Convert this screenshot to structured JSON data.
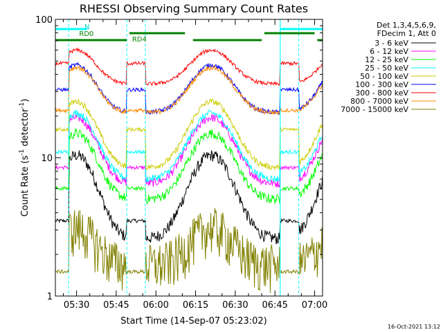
{
  "chart_data": {
    "type": "line",
    "title": "RHESSI Observing Summary Count Rates",
    "xlabel": "Start Time (14-Sep-07 05:23:02)",
    "ylabel_main": "Count Rate (s",
    "ylabel_sup1": "-1",
    "ylabel_mid": " detector",
    "ylabel_sup2": "-1",
    "ylabel_end": ")",
    "yscale": "log",
    "ylim": [
      1,
      100
    ],
    "xlim_minutes": [
      -8,
      93
    ],
    "x_ticks": [
      {
        "label": "05:30",
        "min": 0
      },
      {
        "label": "05:45",
        "min": 15
      },
      {
        "label": "06:00",
        "min": 30
      },
      {
        "label": "06:15",
        "min": 45
      },
      {
        "label": "06:30",
        "min": 60
      },
      {
        "label": "06:45",
        "min": 75
      },
      {
        "label": "07:00",
        "min": 90
      }
    ],
    "y_ticks": [
      {
        "label": "1",
        "value": 1
      },
      {
        "label": "10",
        "value": 10
      },
      {
        "label": "100",
        "value": 100
      }
    ],
    "legend_header": [
      "Det 1,3,4,5,6,9,",
      "FDecim 1, Att 0"
    ],
    "legend_position": "right",
    "series": [
      {
        "name": "3 - 6 keV",
        "color": "#000000",
        "base": 6.5,
        "amp": 1.2,
        "noise": 0.1,
        "night": 3.5
      },
      {
        "name": "6 - 12 keV",
        "color": "#ff00ff",
        "base": 13.0,
        "amp": 1.0,
        "noise": 0.07,
        "night": 8.5
      },
      {
        "name": "12 - 25 keV",
        "color": "#00ff00",
        "base": 10.0,
        "amp": 1.0,
        "noise": 0.08,
        "night": 6.0
      },
      {
        "name": "25 - 50 keV",
        "color": "#00ffff",
        "base": 14.0,
        "amp": 1.0,
        "noise": 0.06,
        "night": 11.0
      },
      {
        "name": "50 - 100 keV",
        "color": "#cccc00",
        "base": 17.0,
        "amp": 1.0,
        "noise": 0.05,
        "night": 16.0
      },
      {
        "name": "100 - 300 keV",
        "color": "#0000ff",
        "base": 34.0,
        "amp": 0.75,
        "noise": 0.04,
        "night": 31.0
      },
      {
        "name": "300 - 800 keV",
        "color": "#ff0000",
        "base": 47.0,
        "amp": 0.55,
        "noise": 0.03,
        "night": 48.0
      },
      {
        "name": "800 - 7000 keV",
        "color": "#ff8800",
        "base": 33.0,
        "amp": 0.72,
        "noise": 0.04,
        "night": 22.0
      },
      {
        "name": "7000 - 15000 keV",
        "color": "#808000",
        "base": 2.4,
        "amp": 0.6,
        "noise": 0.4,
        "night": 1.5
      }
    ],
    "night_intervals_minutes": [
      [
        -8,
        -3
      ],
      [
        19,
        26
      ],
      [
        77,
        84
      ]
    ],
    "saa_label": "N",
    "rd_labels": [
      {
        "label": "RD0"
      },
      {
        "label": "RD4"
      }
    ],
    "footer_date": "16-Oct-2021 13:12"
  }
}
